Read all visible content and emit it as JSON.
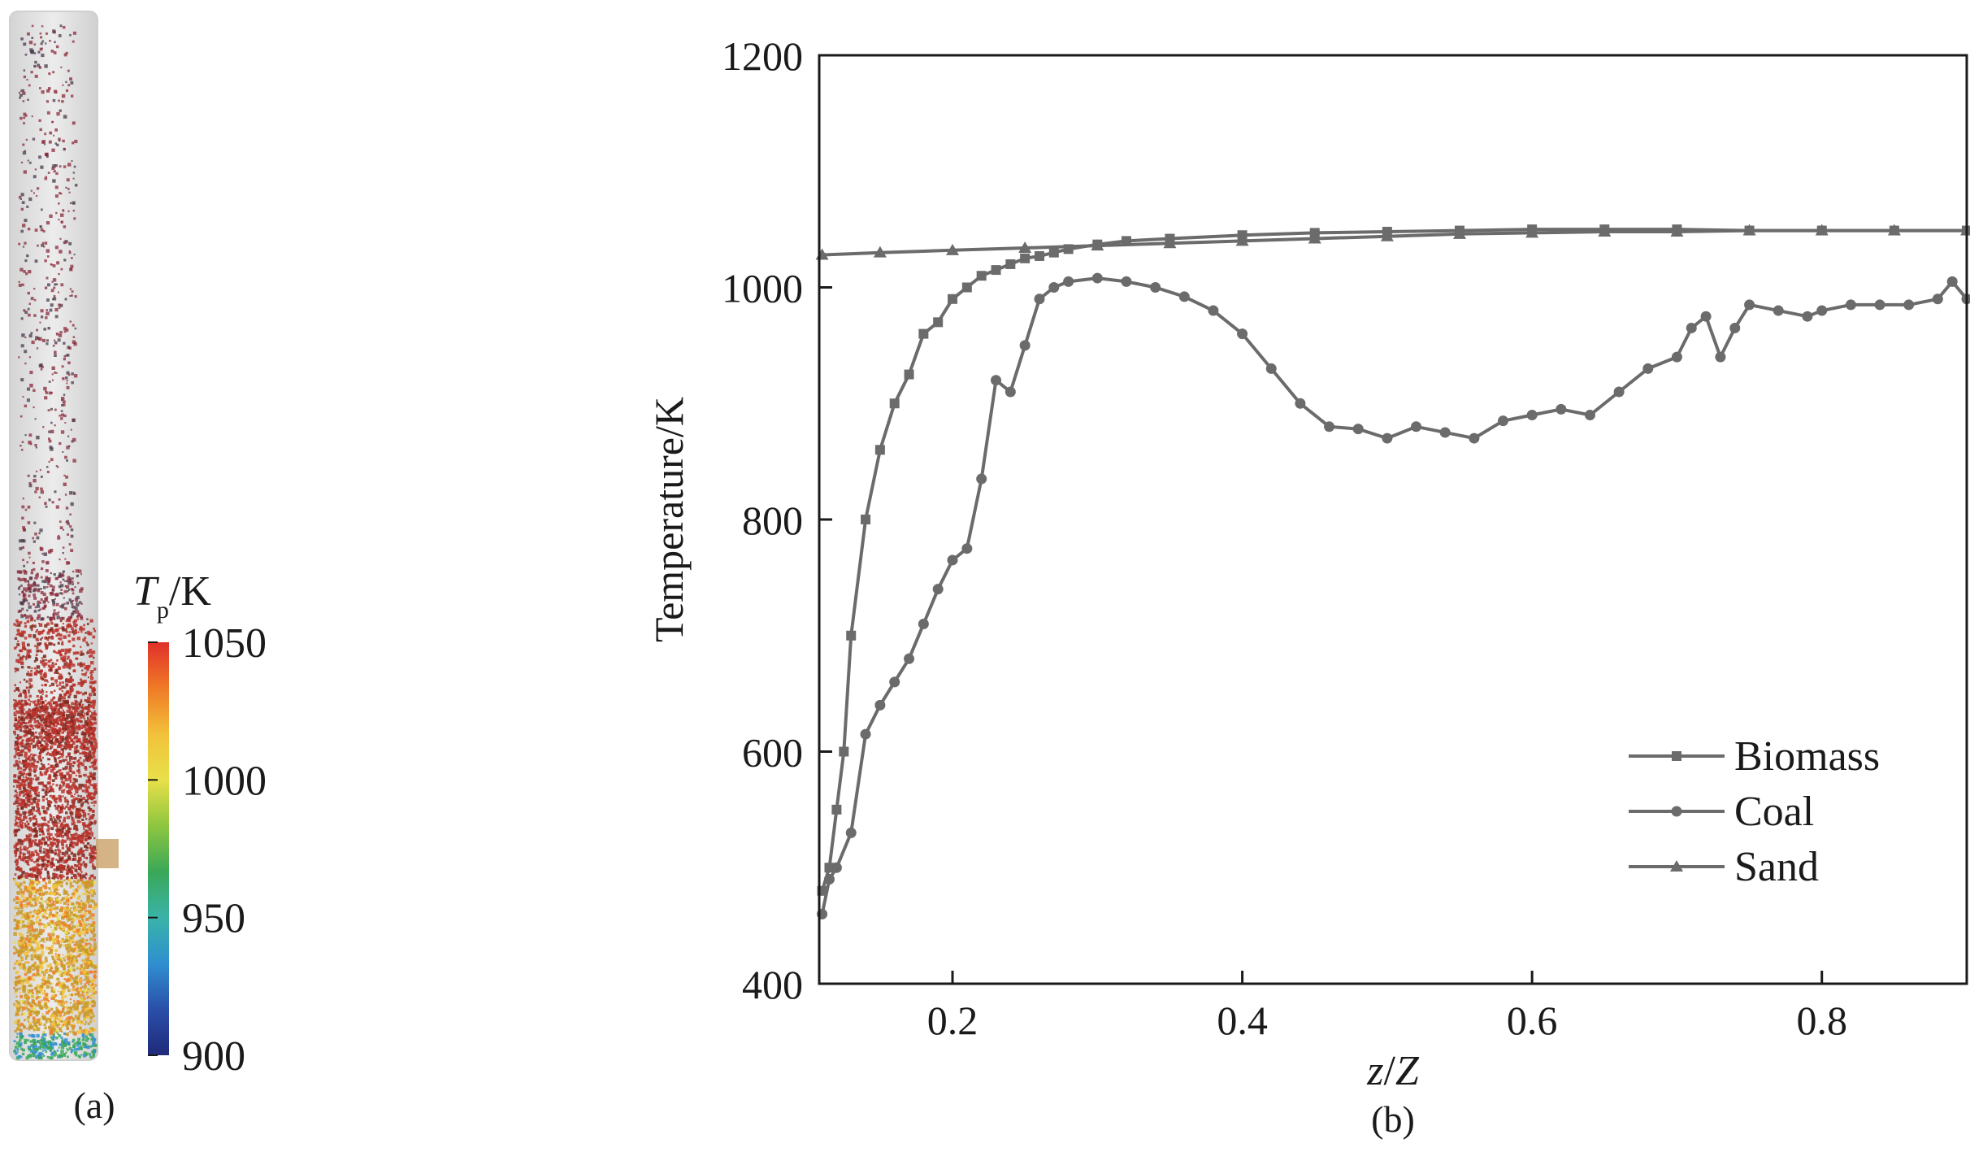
{
  "panels": {
    "a_label": "(a)",
    "b_label": "(b)"
  },
  "colorbar": {
    "symbol": "T",
    "subscript": "p",
    "unit": "/K",
    "ticks": [
      "1050",
      "1000",
      "950",
      "900"
    ],
    "tick_values": [
      1050,
      1000,
      950,
      900
    ],
    "range": [
      900,
      1050
    ],
    "colors": [
      "#e0302a",
      "#f07a26",
      "#f2c13a",
      "#e8e04a",
      "#8ec63f",
      "#3aa858",
      "#39b3a8",
      "#2f8fd0",
      "#2a4fa8",
      "#1f2a7a"
    ]
  },
  "chart_data": {
    "type": "line",
    "xlabel_italic_1": "z",
    "xlabel_sep": "/",
    "xlabel_italic_2": "Z",
    "ylabel": "Temperature/K",
    "xlim": [
      0.108,
      0.9
    ],
    "ylim": [
      400,
      1200
    ],
    "xticks": [
      0.2,
      0.4,
      0.6,
      0.8
    ],
    "xtick_labels": [
      "0.2",
      "0.4",
      "0.6",
      "0.8"
    ],
    "yticks": [
      400,
      600,
      800,
      1000,
      1200
    ],
    "ytick_labels": [
      "400",
      "600",
      "800",
      "1000",
      "1200"
    ],
    "legend_position": "bottom-right",
    "line_color": "#6b6b6b",
    "series": [
      {
        "name": "Biomass",
        "marker": "square",
        "x": [
          0.11,
          0.115,
          0.12,
          0.125,
          0.13,
          0.14,
          0.15,
          0.16,
          0.17,
          0.18,
          0.19,
          0.2,
          0.21,
          0.22,
          0.23,
          0.24,
          0.25,
          0.26,
          0.27,
          0.28,
          0.3,
          0.32,
          0.35,
          0.4,
          0.45,
          0.5,
          0.55,
          0.6,
          0.65,
          0.7,
          0.75,
          0.8,
          0.85,
          0.9
        ],
        "y": [
          480,
          500,
          550,
          600,
          700,
          800,
          860,
          900,
          925,
          960,
          970,
          990,
          1000,
          1010,
          1015,
          1020,
          1025,
          1027,
          1030,
          1033,
          1037,
          1040,
          1042,
          1045,
          1047,
          1048,
          1049,
          1050,
          1050,
          1050,
          1049,
          1049,
          1049,
          1049
        ]
      },
      {
        "name": "Coal",
        "marker": "circle",
        "x": [
          0.11,
          0.115,
          0.12,
          0.13,
          0.14,
          0.15,
          0.16,
          0.17,
          0.18,
          0.19,
          0.2,
          0.21,
          0.22,
          0.23,
          0.24,
          0.25,
          0.26,
          0.27,
          0.28,
          0.3,
          0.32,
          0.34,
          0.36,
          0.38,
          0.4,
          0.42,
          0.44,
          0.46,
          0.48,
          0.5,
          0.52,
          0.54,
          0.56,
          0.58,
          0.6,
          0.62,
          0.64,
          0.66,
          0.68,
          0.7,
          0.71,
          0.72,
          0.73,
          0.74,
          0.75,
          0.77,
          0.79,
          0.8,
          0.82,
          0.84,
          0.86,
          0.88,
          0.89,
          0.9
        ],
        "y": [
          460,
          490,
          500,
          530,
          615,
          640,
          660,
          680,
          710,
          740,
          765,
          775,
          835,
          920,
          910,
          950,
          990,
          1000,
          1005,
          1008,
          1005,
          1000,
          992,
          980,
          960,
          930,
          900,
          880,
          878,
          870,
          880,
          875,
          870,
          885,
          890,
          895,
          890,
          910,
          930,
          940,
          965,
          975,
          940,
          965,
          985,
          980,
          975,
          980,
          985,
          985,
          985,
          990,
          1005,
          990
        ]
      },
      {
        "name": "Sand",
        "marker": "triangle",
        "x": [
          0.11,
          0.15,
          0.2,
          0.25,
          0.3,
          0.35,
          0.4,
          0.45,
          0.5,
          0.55,
          0.6,
          0.65,
          0.7,
          0.75,
          0.8,
          0.85,
          0.9
        ],
        "y": [
          1028,
          1030,
          1032,
          1034,
          1036,
          1038,
          1040,
          1042,
          1044,
          1046,
          1047,
          1048,
          1048,
          1049,
          1049,
          1049,
          1049
        ]
      }
    ]
  }
}
